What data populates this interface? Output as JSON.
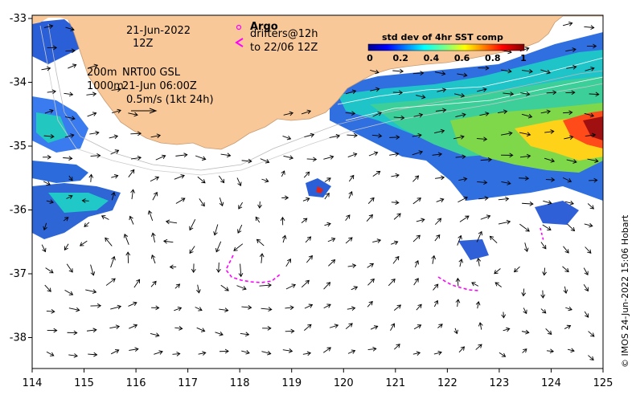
{
  "map": {
    "date_label": "21-Jun-2022",
    "time_label": "12Z",
    "legend_isobath_200": "200m",
    "legend_isobath_1000": "1000m",
    "product_label": "NRT00 GSL",
    "product_time": "21-Jun 06:00Z",
    "scale_label": "0.5m/s (1kt 24h)",
    "argo_label": "Argo",
    "drifters_label": "drifters@12h",
    "drifters_label2": "to 22/06 12Z",
    "x_ticks": [
      "114",
      "115",
      "116",
      "117",
      "118",
      "119",
      "120",
      "121",
      "122",
      "123",
      "124",
      "125"
    ],
    "y_ticks": [
      "-33",
      "-34",
      "-35",
      "-36",
      "-37",
      "-38"
    ],
    "credit": "© IMOS 24-Jun-2022 15:06 Hobart",
    "colors": {
      "land": "#f9c898",
      "drifter": "#ff00ff",
      "arrow": "#000000"
    }
  },
  "colorbar": {
    "title": "std dev of 4hr SST comp",
    "ticks": [
      "0",
      "0.2",
      "0.4",
      "0.6",
      "0.8",
      "1"
    ],
    "range": [
      0,
      1
    ]
  }
}
